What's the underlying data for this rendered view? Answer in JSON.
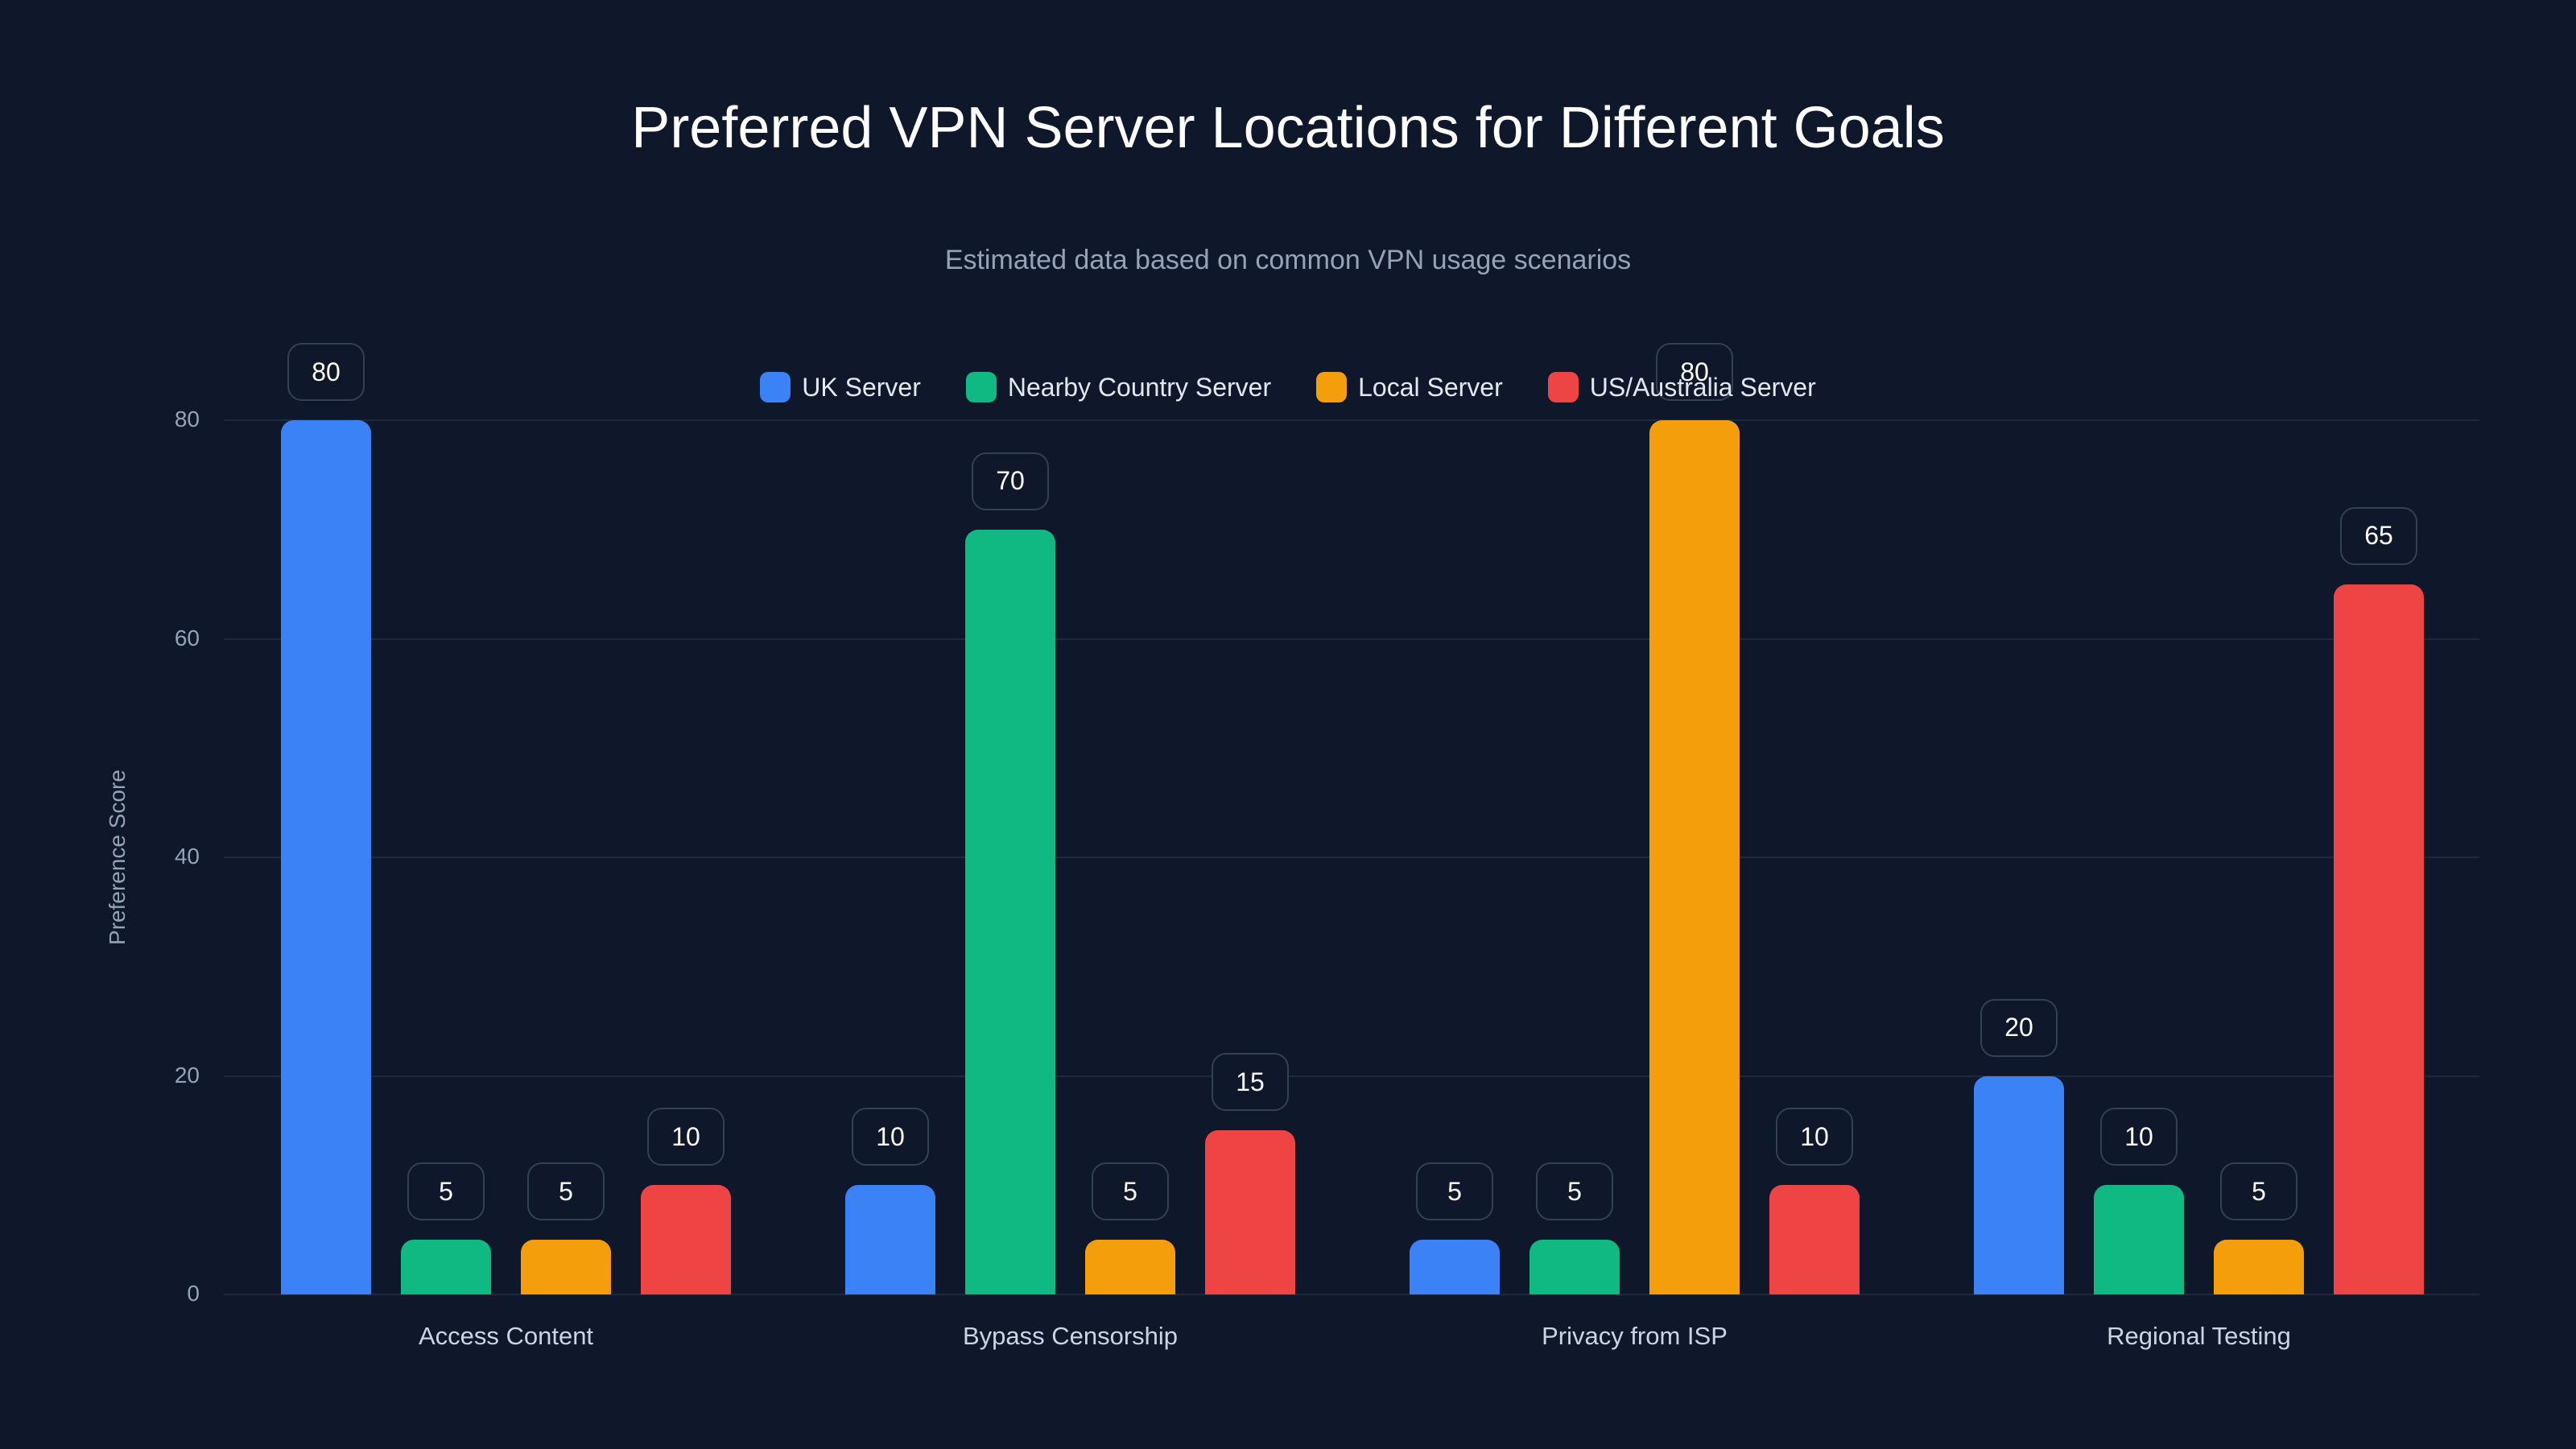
{
  "header": {
    "title": "Preferred VPN Server Locations for Different Goals",
    "subtitle": "Estimated data based on common VPN usage scenarios"
  },
  "legend": [
    {
      "label": "UK Server",
      "color": "#3b82f6"
    },
    {
      "label": "Nearby Country Server",
      "color": "#10b981"
    },
    {
      "label": "Local Server",
      "color": "#f59e0b"
    },
    {
      "label": "US/Australia Server",
      "color": "#ef4444"
    }
  ],
  "axes": {
    "ylabel": "Preference Score",
    "yticks": [
      "0",
      "20",
      "40",
      "60",
      "80"
    ]
  },
  "chart_data": {
    "type": "bar",
    "title": "Preferred VPN Server Locations for Different Goals",
    "subtitle": "Estimated data based on common VPN usage scenarios",
    "xlabel": "",
    "ylabel": "Preference Score",
    "ylim": [
      0,
      80
    ],
    "yticks": [
      0,
      20,
      40,
      60,
      80
    ],
    "grid": true,
    "legend_position": "top",
    "categories": [
      "Access Content",
      "Bypass Censorship",
      "Privacy from ISP",
      "Regional Testing"
    ],
    "series": [
      {
        "name": "UK Server",
        "color": "#3b82f6",
        "values": [
          80,
          10,
          5,
          20
        ]
      },
      {
        "name": "Nearby Country Server",
        "color": "#10b981",
        "values": [
          5,
          70,
          5,
          10
        ]
      },
      {
        "name": "Local Server",
        "color": "#f59e0b",
        "values": [
          5,
          5,
          80,
          5
        ]
      },
      {
        "name": "US/Australia Server",
        "color": "#ef4444",
        "values": [
          10,
          15,
          10,
          65
        ]
      }
    ]
  }
}
